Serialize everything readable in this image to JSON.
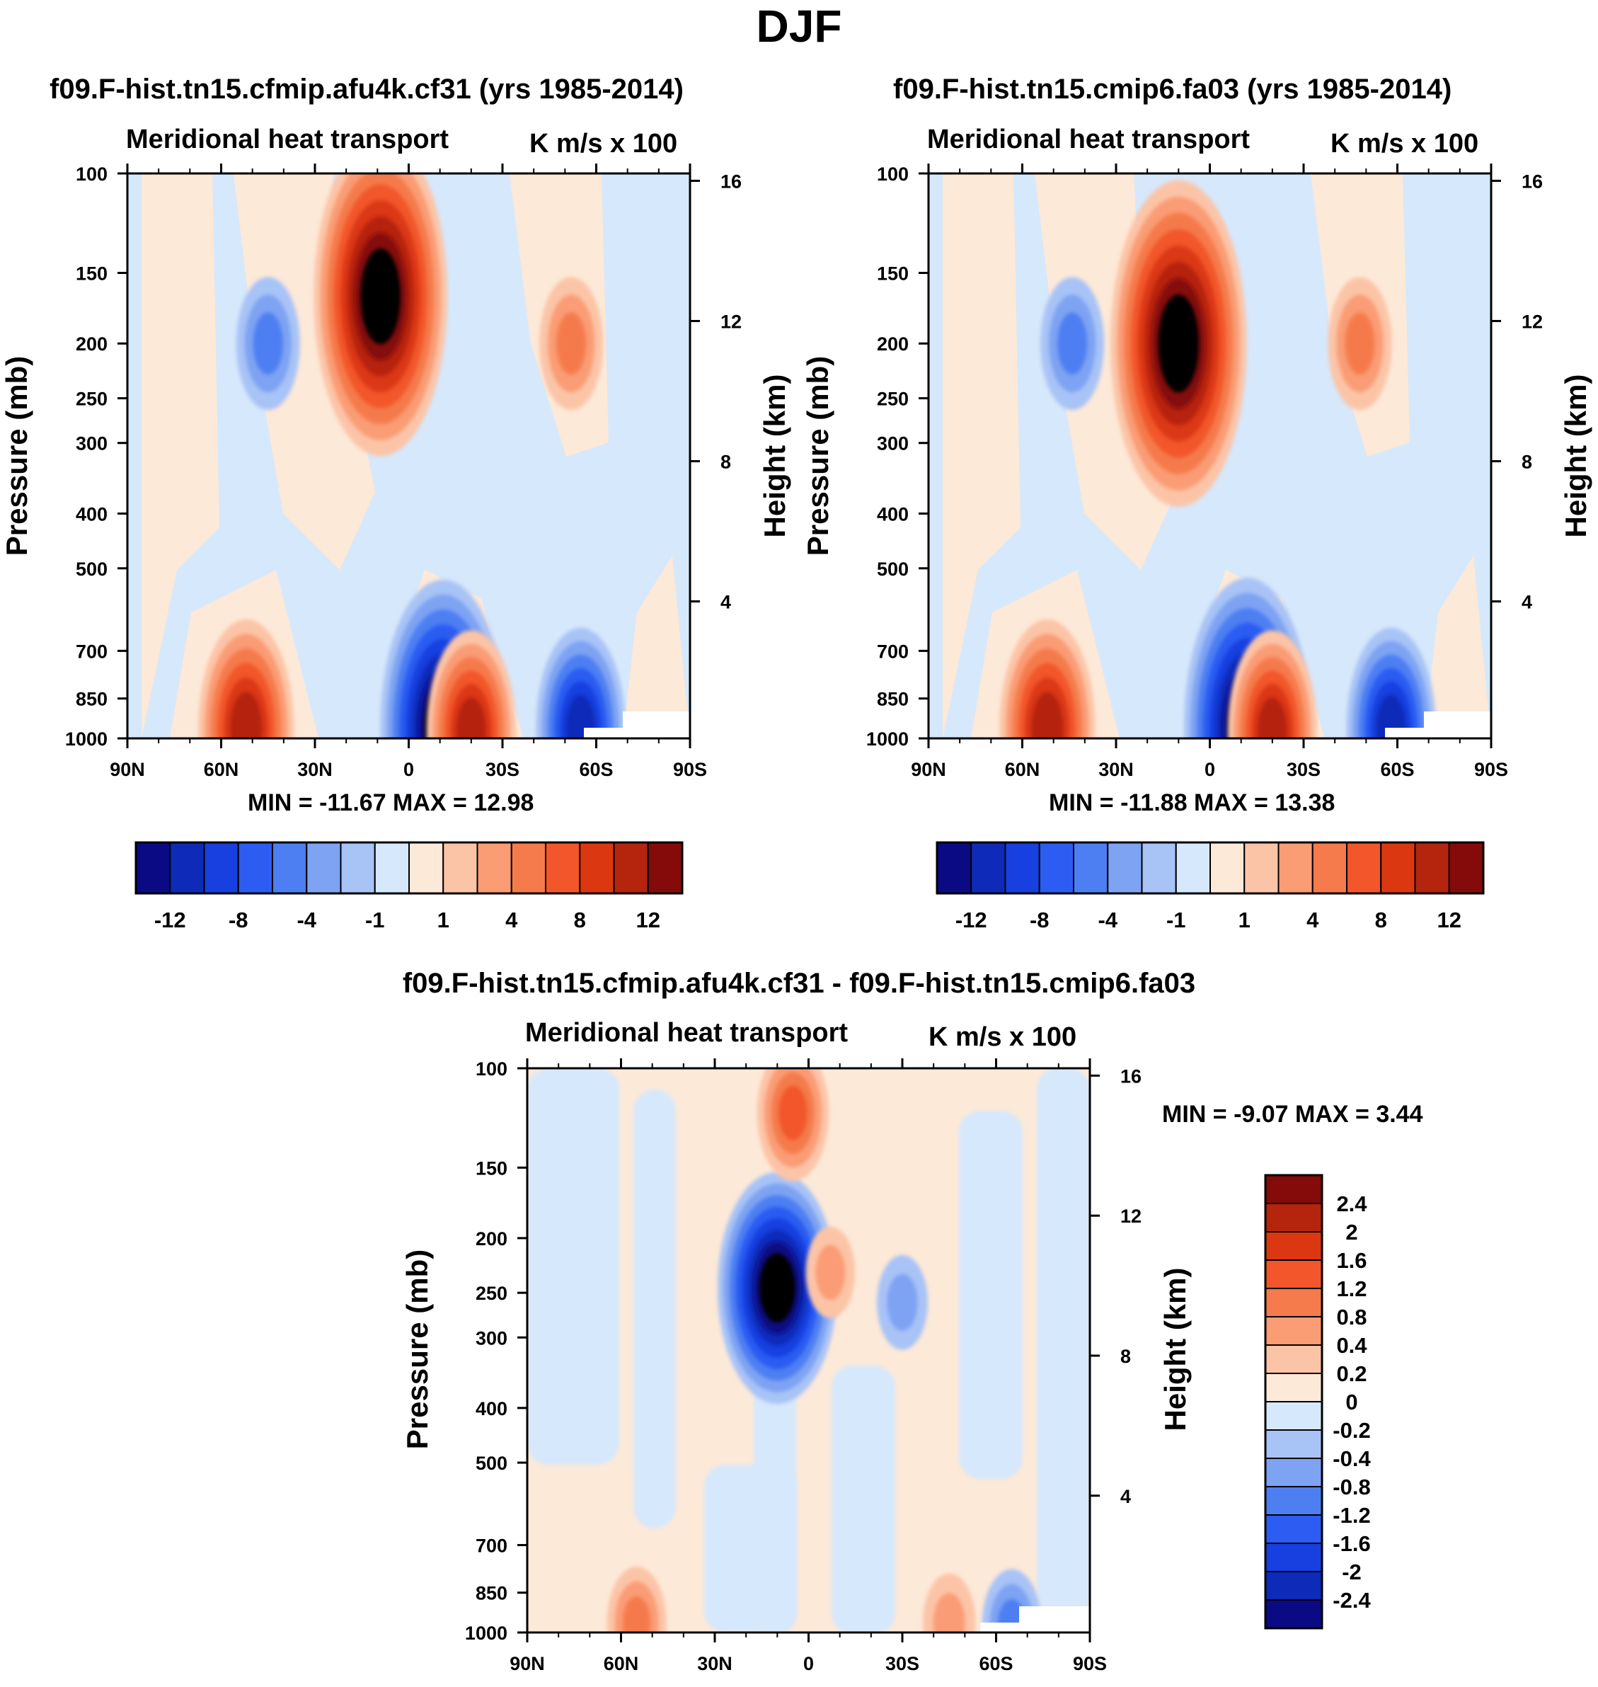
{
  "figure": {
    "title": "DJF",
    "units": "K m/s x 100",
    "field": "Meridional heat transport",
    "colors": {
      "blues": [
        "#0a0a85",
        "#0d2bb8",
        "#1840e0",
        "#2c5cf2",
        "#4d7ff2",
        "#7ea3f3",
        "#a8c3f6",
        "#d6e8fb"
      ],
      "reds": [
        "#fde9d8",
        "#fcc4a7",
        "#fa9c74",
        "#f57a4c",
        "#f2562a",
        "#db3812",
        "#b5240d",
        "#850a0a"
      ]
    }
  },
  "panels": [
    {
      "id": "top-left",
      "case_title": "f09.F-hist.tn15.cfmip.afu4k.cf31 (yrs 1985-2014)",
      "subtitle": "Meridional heat transport",
      "units": "K m/s x 100",
      "min_max": "MIN = -11.67  MAX =  12.98",
      "y_axis_title": "Pressure (mb)",
      "y2_axis_title": "Height (km)"
    },
    {
      "id": "top-right",
      "case_title": "f09.F-hist.tn15.cmip6.fa03 (yrs 1985-2014)",
      "subtitle": "Meridional heat transport",
      "units": "K m/s x 100",
      "min_max": "MIN = -11.88  MAX =  13.38",
      "y_axis_title": "Pressure (mb)",
      "y2_axis_title": "Height (km)"
    },
    {
      "id": "bottom-diff",
      "case_title": "f09.F-hist.tn15.cfmip.afu4k.cf31 - f09.F-hist.tn15.cmip6.fa03",
      "subtitle": "Meridional heat transport",
      "units": "K m/s x 100",
      "min_max": "MIN =  -9.07  MAX =   3.44",
      "y_axis_title": "Pressure (mb)",
      "y2_axis_title": "Height (km)"
    }
  ],
  "colorbar_main": {
    "orientation": "horizontal",
    "labels": [
      "-12",
      "-8",
      "-4",
      "-1",
      "1",
      "4",
      "8",
      "12"
    ]
  },
  "colorbar_diff": {
    "orientation": "vertical",
    "labels": [
      "2.4",
      "2",
      "1.6",
      "1.2",
      "0.8",
      "0.4",
      "0.2",
      "0",
      "-0.2",
      "-0.4",
      "-0.8",
      "-1.2",
      "-1.6",
      "-2",
      "-2.4"
    ]
  },
  "chart_data": [
    {
      "type": "heatmap",
      "title": "f09.F-hist.tn15.cfmip.afu4k.cf31 (yrs 1985-2014)",
      "subtitle": "Meridional heat transport",
      "units": "K m/s x 100",
      "xlabel": "",
      "ylabel": "Pressure (mb)",
      "y2label": "Height (km)",
      "x_ticks": [
        "90N",
        "60N",
        "30N",
        "0",
        "30S",
        "60S",
        "90S"
      ],
      "x_range": [
        90,
        -90
      ],
      "y_ticks": [
        100,
        150,
        200,
        250,
        300,
        400,
        500,
        700,
        850,
        1000
      ],
      "y_range": [
        100,
        1000
      ],
      "y_scale": "log",
      "y2_ticks": [
        16,
        12,
        8,
        4
      ],
      "min": -11.67,
      "max": 12.98,
      "features": [
        {
          "lat": -11,
          "p": 960,
          "value": -11.67,
          "label": "low-level minimum"
        },
        {
          "lat": 9,
          "p": 165,
          "value": 12.98,
          "label": "upper-level maximum"
        },
        {
          "lat": 52,
          "p": 960,
          "value": 7,
          "label": "NH low-level positive"
        },
        {
          "lat": -20,
          "p": 970,
          "value": 6,
          "label": "SH low-level positive"
        },
        {
          "lat": 45,
          "p": 200,
          "value": -2,
          "label": "upper negative"
        },
        {
          "lat": -52,
          "p": 200,
          "value": 2,
          "label": "upper positive"
        },
        {
          "lat": -55,
          "p": 960,
          "value": -6,
          "label": "SH low-level negative"
        }
      ]
    },
    {
      "type": "heatmap",
      "title": "f09.F-hist.tn15.cmip6.fa03 (yrs 1985-2014)",
      "subtitle": "Meridional heat transport",
      "units": "K m/s x 100",
      "xlabel": "",
      "ylabel": "Pressure (mb)",
      "y2label": "Height (km)",
      "x_ticks": [
        "90N",
        "60N",
        "30N",
        "0",
        "30S",
        "60S",
        "90S"
      ],
      "x_range": [
        90,
        -90
      ],
      "y_ticks": [
        100,
        150,
        200,
        250,
        300,
        400,
        500,
        700,
        850,
        1000
      ],
      "y_range": [
        100,
        1000
      ],
      "y_scale": "log",
      "y2_ticks": [
        16,
        12,
        8,
        4
      ],
      "min": -11.88,
      "max": 13.38,
      "features": [
        {
          "lat": -12,
          "p": 960,
          "value": -11.88,
          "label": "low-level minimum"
        },
        {
          "lat": 10,
          "p": 200,
          "value": 13.38,
          "label": "upper-level maximum"
        },
        {
          "lat": 52,
          "p": 960,
          "value": 7,
          "label": "NH low-level positive"
        },
        {
          "lat": -20,
          "p": 970,
          "value": 6,
          "label": "SH low-level positive"
        },
        {
          "lat": 44,
          "p": 200,
          "value": -2,
          "label": "upper negative"
        },
        {
          "lat": -48,
          "p": 200,
          "value": 2,
          "label": "upper positive"
        },
        {
          "lat": -58,
          "p": 960,
          "value": -6,
          "label": "SH low-level negative"
        }
      ]
    },
    {
      "type": "heatmap",
      "title": "f09.F-hist.tn15.cfmip.afu4k.cf31 - f09.F-hist.tn15.cmip6.fa03",
      "subtitle": "Meridional heat transport",
      "units": "K m/s x 100",
      "xlabel": "",
      "ylabel": "Pressure (mb)",
      "y2label": "Height (km)",
      "x_ticks": [
        "90N",
        "60N",
        "30N",
        "0",
        "30S",
        "60S",
        "90S"
      ],
      "x_range": [
        90,
        -90
      ],
      "y_ticks": [
        100,
        150,
        200,
        250,
        300,
        400,
        500,
        700,
        850,
        1000
      ],
      "y_range": [
        100,
        1000
      ],
      "y_scale": "log",
      "y2_ticks": [
        16,
        12,
        8,
        4
      ],
      "min": -9.07,
      "max": 3.44,
      "features": [
        {
          "lat": 10,
          "p": 245,
          "value": -9.07,
          "label": "upper-level minimum"
        },
        {
          "lat": 5,
          "p": 120,
          "value": 3.44,
          "label": "upper-level maximum"
        },
        {
          "lat": 55,
          "p": 960,
          "value": 2,
          "label": "NH low-level positive"
        },
        {
          "lat": -45,
          "p": 960,
          "value": 1.2,
          "label": "SH low-level positive"
        },
        {
          "lat": -7,
          "p": 230,
          "value": 0.8,
          "label": "upper positive"
        },
        {
          "lat": -30,
          "p": 260,
          "value": -1,
          "label": "upper negative"
        },
        {
          "lat": -65,
          "p": 970,
          "value": -2,
          "label": "SH low-level negative"
        }
      ]
    }
  ]
}
